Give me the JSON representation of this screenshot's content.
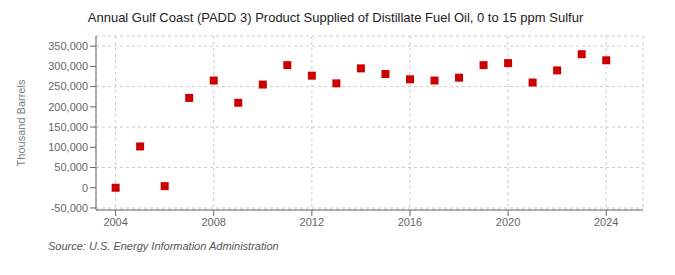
{
  "chart_data": {
    "type": "scatter",
    "title": "Annual Gulf Coast (PADD 3) Product Supplied of Distillate Fuel Oil, 0 to 15 ppm Sulfur",
    "ylabel": "Thousand Barrels",
    "source": "Source: U.S. Energy Information Administration",
    "x": [
      2004,
      2005,
      2006,
      2007,
      2008,
      2009,
      2010,
      2011,
      2012,
      2013,
      2014,
      2015,
      2016,
      2017,
      2018,
      2019,
      2020,
      2021,
      2022,
      2023,
      2024
    ],
    "values": [
      0,
      102000,
      4000,
      222000,
      265000,
      210000,
      255000,
      303000,
      277000,
      258000,
      295000,
      281000,
      268000,
      265000,
      272000,
      303000,
      308000,
      260000,
      290000,
      330000,
      315000
    ],
    "color": "#cc0000",
    "marker": "square",
    "xlim": [
      2003.2,
      2025.5
    ],
    "ylim": [
      -55000,
      375000
    ],
    "xticks": [
      2004,
      2008,
      2012,
      2016,
      2020,
      2024
    ],
    "yticks": [
      {
        "value": -50000,
        "label": "-50,000"
      },
      0,
      {
        "value": 50000,
        "label": "50,000"
      },
      {
        "value": 100000,
        "label": "100,000"
      },
      {
        "value": 150000,
        "label": "150,000"
      },
      {
        "value": 200000,
        "label": "200,000"
      },
      {
        "value": 250000,
        "label": "250,000"
      },
      {
        "value": 300000,
        "label": "300,000"
      },
      {
        "value": 350000,
        "label": "350,000"
      }
    ],
    "grid": true
  }
}
